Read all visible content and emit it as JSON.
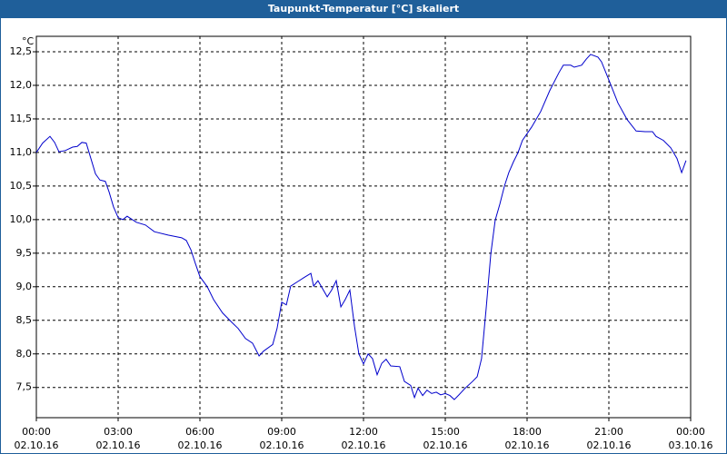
{
  "chart_data": {
    "type": "line",
    "title": "Taupunkt-Temperatur [°C] skaliert",
    "y_label": "°C",
    "color": "#0000cc",
    "grid": true,
    "xlim": [
      0,
      24
    ],
    "ylim": [
      7.05,
      12.73
    ],
    "xticks": [
      {
        "value": 0,
        "label": "00:00",
        "date": "02.10.16"
      },
      {
        "value": 3,
        "label": "03:00",
        "date": "02.10.16"
      },
      {
        "value": 6,
        "label": "06:00",
        "date": "02.10.16"
      },
      {
        "value": 9,
        "label": "09:00",
        "date": "02.10.16"
      },
      {
        "value": 12,
        "label": "12:00",
        "date": "02.10.16"
      },
      {
        "value": 15,
        "label": "15:00",
        "date": "02.10.16"
      },
      {
        "value": 18,
        "label": "18:00",
        "date": "02.10.16"
      },
      {
        "value": 21,
        "label": "21:00",
        "date": "02.10.16"
      },
      {
        "value": 24,
        "label": "00:00",
        "date": "03.10.16"
      }
    ],
    "yticks": [
      {
        "value": 7.5,
        "label": "7,5"
      },
      {
        "value": 8,
        "label": "8,0"
      },
      {
        "value": 8.5,
        "label": "8,5"
      },
      {
        "value": 9,
        "label": "9,0"
      },
      {
        "value": 9.5,
        "label": "9,5"
      },
      {
        "value": 10,
        "label": "10,0"
      },
      {
        "value": 10.5,
        "label": "10,5"
      },
      {
        "value": 11,
        "label": "11,0"
      },
      {
        "value": 11.5,
        "label": "11,5"
      },
      {
        "value": 12,
        "label": "12,0"
      },
      {
        "value": 12.5,
        "label": "12,5"
      }
    ],
    "x": [
      0,
      0.23,
      0.5,
      0.67,
      0.83,
      1.07,
      1.33,
      1.5,
      1.67,
      1.83,
      2,
      2.17,
      2.33,
      2.53,
      2.67,
      2.83,
      3,
      3.17,
      3.33,
      3.67,
      4,
      4.33,
      4.83,
      5.33,
      5.5,
      5.67,
      5.83,
      6,
      6.27,
      6.5,
      6.83,
      7.17,
      7.4,
      7.67,
      7.93,
      8.17,
      8.33,
      8.67,
      8.83,
      9,
      9.17,
      9.33,
      9.6,
      9.83,
      10.07,
      10.17,
      10.33,
      10.5,
      10.67,
      10.83,
      11,
      11.17,
      11.33,
      11.5,
      11.67,
      11.83,
      12,
      12.17,
      12.33,
      12.5,
      12.67,
      12.83,
      13,
      13.33,
      13.5,
      13.73,
      13.87,
      14,
      14.17,
      14.33,
      14.5,
      14.67,
      14.83,
      15,
      15.17,
      15.33,
      15.5,
      15.73,
      16,
      16.17,
      16.33,
      16.5,
      16.67,
      16.83,
      17,
      17.17,
      17.33,
      17.5,
      17.67,
      17.83,
      18.17,
      18.5,
      18.83,
      19.17,
      19.33,
      19.6,
      19.73,
      20,
      20.17,
      20.33,
      20.6,
      20.73,
      21,
      21.33,
      21.67,
      22,
      22.33,
      22.6,
      22.73,
      23,
      23.27,
      23.5,
      23.67,
      23.83
    ],
    "values": [
      11.0,
      11.14,
      11.24,
      11.15,
      11.01,
      11.03,
      11.08,
      11.09,
      11.15,
      11.14,
      10.91,
      10.68,
      10.59,
      10.57,
      10.41,
      10.19,
      10.03,
      10.0,
      10.05,
      9.96,
      9.92,
      9.82,
      9.77,
      9.73,
      9.69,
      9.55,
      9.35,
      9.15,
      9.0,
      8.81,
      8.61,
      8.47,
      8.38,
      8.23,
      8.16,
      7.97,
      8.04,
      8.14,
      8.38,
      8.77,
      8.73,
      9.01,
      9.08,
      9.14,
      9.2,
      9.01,
      9.09,
      8.97,
      8.85,
      8.95,
      9.09,
      8.7,
      8.81,
      8.95,
      8.41,
      8.0,
      7.85,
      8.0,
      7.93,
      7.69,
      7.86,
      7.92,
      7.82,
      7.81,
      7.59,
      7.53,
      7.35,
      7.49,
      7.38,
      7.46,
      7.41,
      7.43,
      7.39,
      7.41,
      7.38,
      7.32,
      7.39,
      7.49,
      7.59,
      7.66,
      7.93,
      8.68,
      9.49,
      9.99,
      10.23,
      10.5,
      10.7,
      10.86,
      11.0,
      11.18,
      11.38,
      11.61,
      11.92,
      12.19,
      12.3,
      12.3,
      12.27,
      12.3,
      12.39,
      12.46,
      12.42,
      12.35,
      12.08,
      11.74,
      11.49,
      11.32,
      11.31,
      11.31,
      11.24,
      11.18,
      11.07,
      10.91,
      10.7,
      10.88
    ]
  }
}
